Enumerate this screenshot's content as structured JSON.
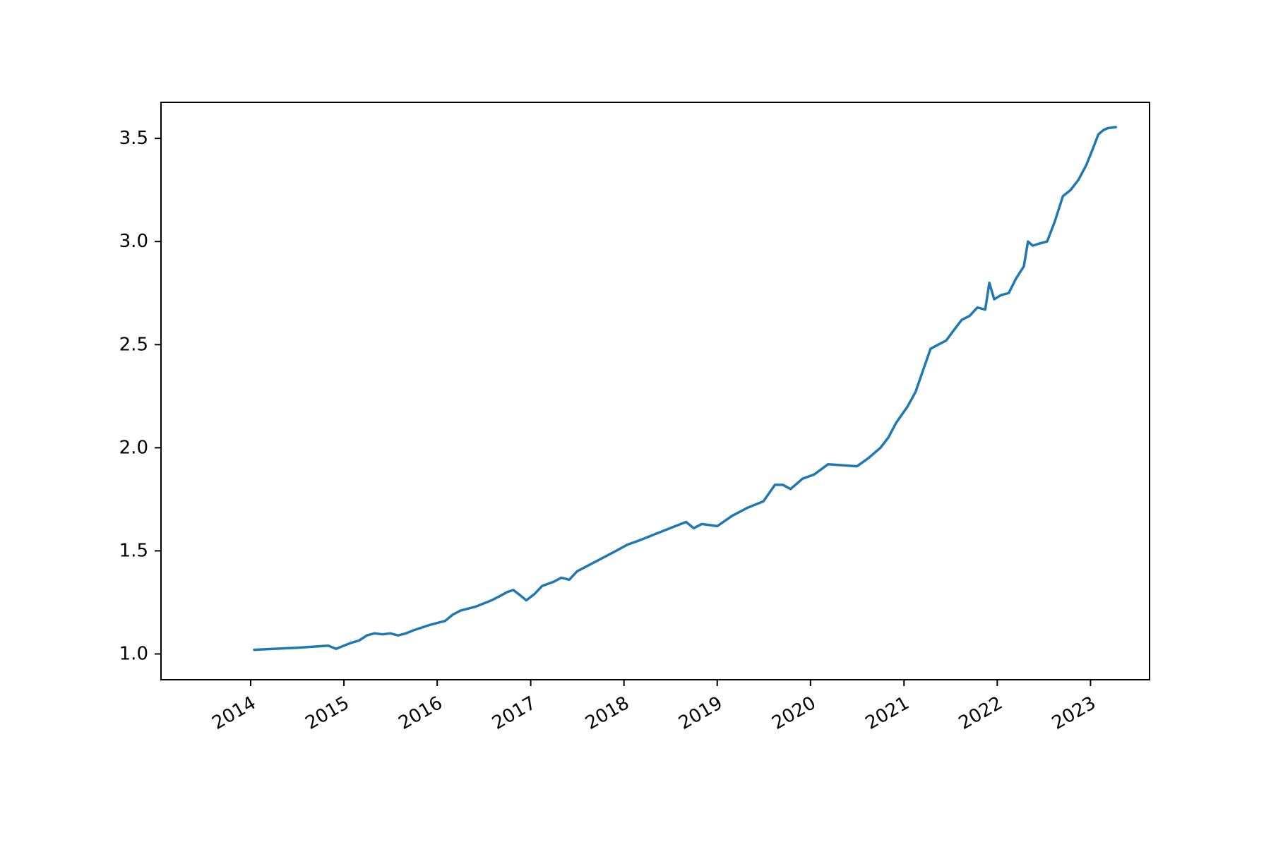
{
  "chart_data": {
    "type": "line",
    "title": "",
    "xlabel": "",
    "ylabel": "",
    "grid": false,
    "legend": "none",
    "xlim": [
      "2013-01-15",
      "2023-08-20"
    ],
    "ylim": [
      0.875,
      3.675
    ],
    "x_ticks": [
      "2014",
      "2015",
      "2016",
      "2017",
      "2018",
      "2019",
      "2020",
      "2021",
      "2022",
      "2023"
    ],
    "y_ticks": [
      "1.0",
      "1.5",
      "2.0",
      "2.5",
      "3.0",
      "3.5"
    ],
    "series": [
      {
        "color": "#1f77b4",
        "points": [
          [
            "2014-01-15",
            1.02
          ],
          [
            "2014-04-01",
            1.025
          ],
          [
            "2014-07-01",
            1.03
          ],
          [
            "2014-11-01",
            1.04
          ],
          [
            "2014-12-01",
            1.025
          ],
          [
            "2015-01-01",
            1.04
          ],
          [
            "2015-02-01",
            1.055
          ],
          [
            "2015-03-01",
            1.065
          ],
          [
            "2015-04-01",
            1.09
          ],
          [
            "2015-05-01",
            1.1
          ],
          [
            "2015-06-01",
            1.095
          ],
          [
            "2015-07-01",
            1.1
          ],
          [
            "2015-08-01",
            1.09
          ],
          [
            "2015-09-01",
            1.1
          ],
          [
            "2015-10-01",
            1.115
          ],
          [
            "2015-12-01",
            1.14
          ],
          [
            "2016-02-01",
            1.16
          ],
          [
            "2016-03-01",
            1.19
          ],
          [
            "2016-04-01",
            1.21
          ],
          [
            "2016-06-01",
            1.23
          ],
          [
            "2016-08-01",
            1.26
          ],
          [
            "2016-09-01",
            1.28
          ],
          [
            "2016-10-01",
            1.3
          ],
          [
            "2016-10-25",
            1.31
          ],
          [
            "2016-11-15",
            1.29
          ],
          [
            "2016-12-15",
            1.26
          ],
          [
            "2017-01-15",
            1.29
          ],
          [
            "2017-02-15",
            1.33
          ],
          [
            "2017-04-01",
            1.35
          ],
          [
            "2017-05-01",
            1.37
          ],
          [
            "2017-06-01",
            1.36
          ],
          [
            "2017-07-01",
            1.4
          ],
          [
            "2017-08-15",
            1.43
          ],
          [
            "2017-10-01",
            1.46
          ],
          [
            "2017-12-01",
            1.5
          ],
          [
            "2018-01-15",
            1.53
          ],
          [
            "2018-03-01",
            1.55
          ],
          [
            "2018-05-01",
            1.58
          ],
          [
            "2018-07-01",
            1.61
          ],
          [
            "2018-09-01",
            1.64
          ],
          [
            "2018-10-01",
            1.61
          ],
          [
            "2018-11-01",
            1.63
          ],
          [
            "2019-01-01",
            1.62
          ],
          [
            "2019-03-01",
            1.67
          ],
          [
            "2019-05-01",
            1.71
          ],
          [
            "2019-07-01",
            1.74
          ],
          [
            "2019-08-15",
            1.82
          ],
          [
            "2019-09-15",
            1.82
          ],
          [
            "2019-10-15",
            1.8
          ],
          [
            "2019-12-01",
            1.85
          ],
          [
            "2020-01-15",
            1.87
          ],
          [
            "2020-03-10",
            1.92
          ],
          [
            "2020-07-01",
            1.91
          ],
          [
            "2020-08-15",
            1.95
          ],
          [
            "2020-10-01",
            2.0
          ],
          [
            "2020-11-01",
            2.05
          ],
          [
            "2020-12-01",
            2.12
          ],
          [
            "2021-01-15",
            2.2
          ],
          [
            "2021-02-15",
            2.27
          ],
          [
            "2021-03-15",
            2.37
          ],
          [
            "2021-04-15",
            2.48
          ],
          [
            "2021-05-15",
            2.5
          ],
          [
            "2021-06-15",
            2.52
          ],
          [
            "2021-07-15",
            2.57
          ],
          [
            "2021-08-15",
            2.62
          ],
          [
            "2021-09-15",
            2.64
          ],
          [
            "2021-10-15",
            2.68
          ],
          [
            "2021-11-15",
            2.67
          ],
          [
            "2021-12-01",
            2.8
          ],
          [
            "2021-12-20",
            2.72
          ],
          [
            "2022-01-15",
            2.74
          ],
          [
            "2022-02-15",
            2.75
          ],
          [
            "2022-03-15",
            2.82
          ],
          [
            "2022-04-15",
            2.88
          ],
          [
            "2022-05-01",
            3.0
          ],
          [
            "2022-05-20",
            2.98
          ],
          [
            "2022-06-15",
            2.99
          ],
          [
            "2022-07-15",
            3.0
          ],
          [
            "2022-08-15",
            3.1
          ],
          [
            "2022-09-15",
            3.22
          ],
          [
            "2022-10-15",
            3.25
          ],
          [
            "2022-11-15",
            3.3
          ],
          [
            "2022-12-15",
            3.37
          ],
          [
            "2023-01-10",
            3.45
          ],
          [
            "2023-02-01",
            3.52
          ],
          [
            "2023-02-20",
            3.54
          ],
          [
            "2023-03-10",
            3.55
          ],
          [
            "2023-04-10",
            3.555
          ]
        ]
      }
    ]
  }
}
